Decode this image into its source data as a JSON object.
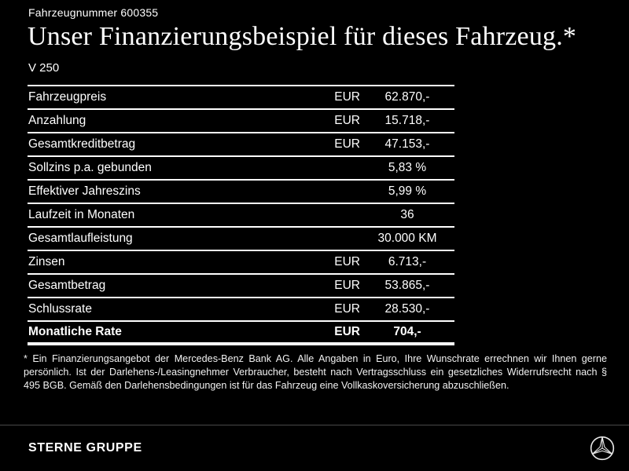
{
  "header": {
    "vehicle_number": "Fahrzeugnummer 600355",
    "title": "Unser Finanzierungsbeispiel für dieses Fahrzeug.*",
    "subtitle": "V 250"
  },
  "table": {
    "rows": [
      {
        "label": "Fahrzeugpreis",
        "currency": "EUR",
        "value": "62.870,-",
        "bold": false
      },
      {
        "label": "Anzahlung",
        "currency": "EUR",
        "value": "15.718,-",
        "bold": false
      },
      {
        "label": "Gesamtkreditbetrag",
        "currency": "EUR",
        "value": "47.153,-",
        "bold": false
      },
      {
        "label": "Sollzins p.a. gebunden",
        "currency": "",
        "value": "5,83 %",
        "bold": false
      },
      {
        "label": "Effektiver Jahreszins",
        "currency": "",
        "value": "5,99 %",
        "bold": false
      },
      {
        "label": "Laufzeit in Monaten",
        "currency": "",
        "value": "36",
        "bold": false
      },
      {
        "label": "Gesamtlaufleistung",
        "currency": "",
        "value": "30.000 KM",
        "bold": false
      },
      {
        "label": "Zinsen",
        "currency": "EUR",
        "value": "6.713,-",
        "bold": false
      },
      {
        "label": "Gesamtbetrag",
        "currency": "EUR",
        "value": "53.865,-",
        "bold": false
      },
      {
        "label": "Schlussrate",
        "currency": "EUR",
        "value": "28.530,-",
        "bold": false
      },
      {
        "label": "Monatliche Rate",
        "currency": "EUR",
        "value": "704,-",
        "bold": true
      }
    ]
  },
  "footnote": "* Ein Finanzierungsangebot der Mercedes-Benz Bank AG. Alle Angaben in Euro, Ihre Wunschrate errechnen wir Ihnen gerne persönlich. Ist der Darlehens-/Leasingnehmer Verbraucher, besteht nach Vertragsschluss ein gesetzliches Widerrufsrecht nach § 495 BGB. Gemäß den Darlehensbedingungen ist für das Fahrzeug eine Vollkaskoversicherung abzuschließen.",
  "footer": {
    "brand": "STERNE GRUPPE",
    "logo_icon": "mercedes-star-icon"
  },
  "colors": {
    "background": "#000000",
    "text": "#ffffff",
    "divider": "#4a4a4a"
  }
}
